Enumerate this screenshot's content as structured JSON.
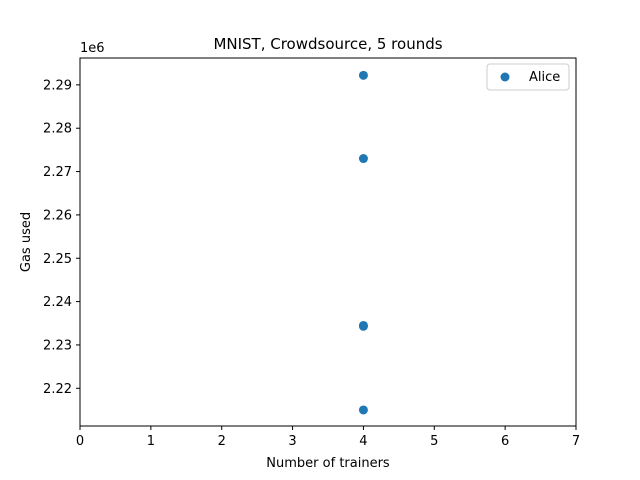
{
  "chart_data": {
    "type": "scatter",
    "title": "MNIST, Crowdsource, 5 rounds",
    "xlabel": "Number of trainers",
    "ylabel": "Gas used",
    "y_offset_label": "1e6",
    "xlim": [
      0,
      7
    ],
    "ylim": [
      2.2113,
      2.2962
    ],
    "y_scale": 1000000,
    "xticks": [
      "0",
      "1",
      "2",
      "3",
      "4",
      "5",
      "6",
      "7"
    ],
    "xtick_values": [
      0,
      1,
      2,
      3,
      4,
      5,
      6,
      7
    ],
    "yticks": [
      "2.22",
      "2.23",
      "2.24",
      "2.25",
      "2.26",
      "2.27",
      "2.28",
      "2.29"
    ],
    "ytick_values": [
      2.22,
      2.23,
      2.24,
      2.25,
      2.26,
      2.27,
      2.28,
      2.29
    ],
    "grid": false,
    "legend_position": "top-right",
    "series": [
      {
        "name": "Alice",
        "color": "#1f77b4",
        "x": [
          4,
          4,
          4,
          4,
          4
        ],
        "y": [
          2.2922,
          2.273,
          2.2345,
          2.2343,
          2.215
        ]
      }
    ]
  }
}
